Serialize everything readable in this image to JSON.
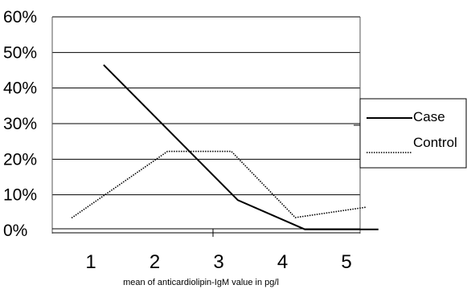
{
  "chart_data": {
    "type": "line",
    "xlabel": "mean of anticardiolipin-IgM value in pg/l",
    "ylabel": "",
    "yticks": [
      "0%",
      "10%",
      "20%",
      "30%",
      "40%",
      "50%",
      "60%"
    ],
    "xticks": [
      "1",
      "2",
      "3",
      "4",
      "5"
    ],
    "ylim": [
      0,
      60
    ],
    "grid": true,
    "legend_position": "right",
    "series": [
      {
        "name": "Case",
        "style": "solid",
        "color": "#000000",
        "points": [
          {
            "x": 1.2,
            "y": 46.5
          },
          {
            "x": 3.3,
            "y": 8.5
          },
          {
            "x": 4.35,
            "y": 0.3
          },
          {
            "x": 5.5,
            "y": 0.3
          }
        ]
      },
      {
        "name": "Control",
        "style": "dotted",
        "color": "#000000",
        "points": [
          {
            "x": 0.7,
            "y": 3.5
          },
          {
            "x": 2.2,
            "y": 22.2
          },
          {
            "x": 3.2,
            "y": 22.2
          },
          {
            "x": 4.2,
            "y": 3.6
          },
          {
            "x": 5.3,
            "y": 6.5
          }
        ]
      }
    ]
  }
}
